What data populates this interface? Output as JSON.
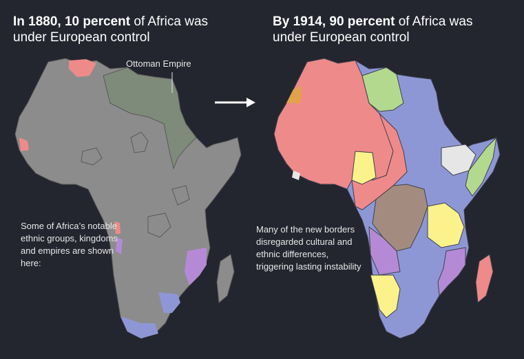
{
  "left_panel": {
    "title_bold": "In 1880, 10 percent",
    "title_rest": " of Africa was under European control",
    "ottoman_label": "Ottoman Empire",
    "note": "Some of Africa’s notable ethnic groups, kingdoms and empires are shown here:"
  },
  "right_panel": {
    "title_bold": "By 1914, 90 percent",
    "title_rest": " of Africa was under European control",
    "note": "Many of the new borders disregarded cultural and ethnic differences, triggering lasting instability"
  },
  "colors": {
    "background": "#23252f",
    "unclaimed": "#8c8c8c",
    "ottoman": "#7e8a7a",
    "french": "#ee8a8a",
    "british": "#8e97d6",
    "german": "#a38c7f",
    "italian": "#b3d98f",
    "portuguese": "#b48ad6",
    "belgian": "#a38c7f",
    "spanish": "#e2a24a",
    "independent": "#e6e6e6",
    "german_east": "#fbf28c"
  },
  "icons": {
    "arrow": "arrow-right-icon"
  }
}
